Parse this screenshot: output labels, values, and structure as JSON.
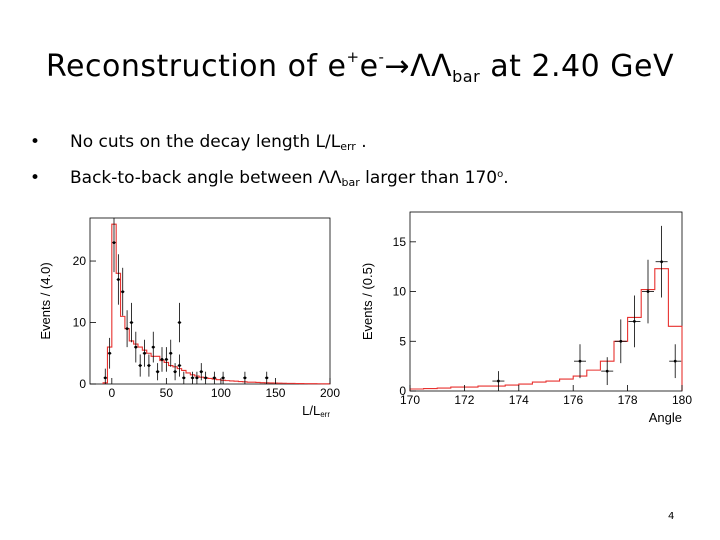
{
  "title": {
    "prefix": "Reconstruction of e",
    "sup1": "+",
    "mid": "e",
    "sup2": "-",
    "arrow": "→",
    "lambdas": "ΛΛ",
    "sub": "bar",
    "suffix": " at 2.40 GeV"
  },
  "bullets": [
    {
      "dot": "•",
      "pre": "No cuts on the decay length L/L",
      "sub": "err",
      "post": " ."
    },
    {
      "dot": "•",
      "pre": "Back-to-back angle between ΛΛ",
      "sub": "bar",
      "mid": " larger than 170",
      "sup": "o",
      "post": "."
    }
  ],
  "page_number": "4",
  "chart_data": [
    {
      "type": "histogram",
      "ylabel": "Events / (4.0)",
      "xlabel_main": "L/L",
      "xlabel_sub": "err",
      "xlim": [
        -20,
        200
      ],
      "ylim": [
        0,
        27
      ],
      "xticks": [
        0,
        50,
        100,
        150,
        200
      ],
      "yticks": [
        0,
        10,
        20
      ],
      "fit_color": "#e8312f",
      "fit_bins": [
        [
          -8,
          -4,
          0.2
        ],
        [
          -4,
          0,
          6.0
        ],
        [
          0,
          4,
          26.0
        ],
        [
          4,
          8,
          18.0
        ],
        [
          8,
          12,
          11.0
        ],
        [
          12,
          16,
          9.0
        ],
        [
          16,
          20,
          7.0
        ],
        [
          20,
          24,
          6.5
        ],
        [
          24,
          28,
          6.0
        ],
        [
          28,
          32,
          5.5
        ],
        [
          32,
          36,
          5.0
        ],
        [
          36,
          40,
          4.5
        ],
        [
          40,
          44,
          4.5
        ],
        [
          44,
          48,
          3.8
        ],
        [
          48,
          52,
          3.5
        ],
        [
          52,
          56,
          3.0
        ],
        [
          56,
          60,
          2.8
        ],
        [
          60,
          64,
          2.5
        ],
        [
          64,
          68,
          2.2
        ],
        [
          68,
          72,
          1.8
        ],
        [
          72,
          76,
          1.5
        ],
        [
          76,
          80,
          1.3
        ],
        [
          80,
          84,
          1.1
        ],
        [
          84,
          88,
          1.0
        ],
        [
          88,
          92,
          0.9
        ],
        [
          92,
          96,
          0.8
        ],
        [
          96,
          100,
          0.7
        ],
        [
          100,
          104,
          0.6
        ],
        [
          104,
          108,
          0.55
        ],
        [
          108,
          112,
          0.5
        ],
        [
          112,
          116,
          0.45
        ],
        [
          116,
          120,
          0.4
        ],
        [
          120,
          124,
          0.35
        ],
        [
          124,
          128,
          0.3
        ],
        [
          128,
          132,
          0.3
        ],
        [
          132,
          136,
          0.25
        ],
        [
          136,
          140,
          0.22
        ],
        [
          140,
          144,
          0.2
        ],
        [
          144,
          148,
          0.18
        ],
        [
          148,
          152,
          0.16
        ],
        [
          152,
          156,
          0.14
        ],
        [
          156,
          160,
          0.12
        ],
        [
          160,
          164,
          0.1
        ],
        [
          164,
          168,
          0.1
        ],
        [
          168,
          172,
          0.08
        ],
        [
          172,
          176,
          0.07
        ],
        [
          176,
          180,
          0.06
        ],
        [
          180,
          184,
          0.05
        ],
        [
          184,
          188,
          0.05
        ],
        [
          188,
          192,
          0.04
        ],
        [
          192,
          196,
          0.03
        ],
        [
          196,
          200,
          0.03
        ]
      ],
      "points": [
        {
          "x": -6,
          "y": 1,
          "err": 1.5
        },
        {
          "x": -2,
          "y": 5,
          "err": 2.5
        },
        {
          "x": 2,
          "y": 23,
          "err": 4.8
        },
        {
          "x": 6,
          "y": 17,
          "err": 4.1
        },
        {
          "x": 10,
          "y": 15,
          "err": 3.9
        },
        {
          "x": 14,
          "y": 9,
          "err": 3.0
        },
        {
          "x": 18,
          "y": 10,
          "err": 3.2
        },
        {
          "x": 22,
          "y": 6,
          "err": 2.5
        },
        {
          "x": 26,
          "y": 3,
          "err": 1.8
        },
        {
          "x": 30,
          "y": 5,
          "err": 2.2
        },
        {
          "x": 34,
          "y": 3,
          "err": 1.8
        },
        {
          "x": 38,
          "y": 6,
          "err": 2.5
        },
        {
          "x": 42,
          "y": 2,
          "err": 1.4
        },
        {
          "x": 46,
          "y": 4,
          "err": 2.0
        },
        {
          "x": 50,
          "y": 4,
          "err": 2.0
        },
        {
          "x": 54,
          "y": 5,
          "err": 2.2
        },
        {
          "x": 58,
          "y": 2,
          "err": 1.4
        },
        {
          "x": 62,
          "y": 3,
          "err": 1.8
        },
        {
          "x": 66,
          "y": 1,
          "err": 1.0
        },
        {
          "x": 74,
          "y": 1,
          "err": 1.0
        },
        {
          "x": 78,
          "y": 1,
          "err": 1.0
        },
        {
          "x": 82,
          "y": 2,
          "err": 1.4
        },
        {
          "x": 86,
          "y": 1,
          "err": 1.0
        },
        {
          "x": 62,
          "y": 10,
          "err": 3.2
        },
        {
          "x": 94,
          "y": 1,
          "err": 1.0
        },
        {
          "x": 102,
          "y": 1,
          "err": 1.0
        },
        {
          "x": 122,
          "y": 1,
          "err": 1.0
        },
        {
          "x": 142,
          "y": 1,
          "err": 1.0
        }
      ]
    },
    {
      "type": "histogram",
      "ylabel": "Events / (0.5)",
      "xlabel_main": "Angle",
      "xlim": [
        170,
        180
      ],
      "ylim": [
        0,
        18
      ],
      "xticks": [
        170,
        172,
        174,
        176,
        178,
        180
      ],
      "yticks": [
        0,
        5,
        10,
        15
      ],
      "fit_color": "#e8312f",
      "fit_bins": [
        [
          170,
          170.5,
          0.2
        ],
        [
          170.5,
          171,
          0.25
        ],
        [
          171,
          171.5,
          0.3
        ],
        [
          171.5,
          172,
          0.4
        ],
        [
          172,
          172.5,
          0.4
        ],
        [
          172.5,
          173,
          0.5
        ],
        [
          173,
          173.5,
          0.5
        ],
        [
          173.5,
          174,
          0.6
        ],
        [
          174,
          174.5,
          0.7
        ],
        [
          174.5,
          175,
          0.9
        ],
        [
          175,
          175.5,
          1.0
        ],
        [
          175.5,
          176,
          1.2
        ],
        [
          176,
          176.5,
          1.5
        ],
        [
          176.5,
          177,
          2.1
        ],
        [
          177,
          177.5,
          3.0
        ],
        [
          177.5,
          178,
          5.0
        ],
        [
          178,
          178.5,
          7.4
        ],
        [
          178.5,
          179,
          10.2
        ],
        [
          179,
          179.5,
          12.3
        ],
        [
          179.5,
          180,
          6.5
        ]
      ],
      "points": [
        {
          "x": 173.25,
          "y": 1,
          "err": 1.0
        },
        {
          "x": 176.25,
          "y": 3,
          "err": 1.7
        },
        {
          "x": 177.25,
          "y": 2,
          "err": 1.4
        },
        {
          "x": 177.75,
          "y": 5,
          "err": 2.2
        },
        {
          "x": 178.25,
          "y": 7,
          "err": 2.6
        },
        {
          "x": 178.75,
          "y": 10,
          "err": 3.2
        },
        {
          "x": 179.25,
          "y": 13,
          "err": 3.6
        },
        {
          "x": 179.75,
          "y": 3,
          "err": 1.7
        }
      ]
    }
  ]
}
